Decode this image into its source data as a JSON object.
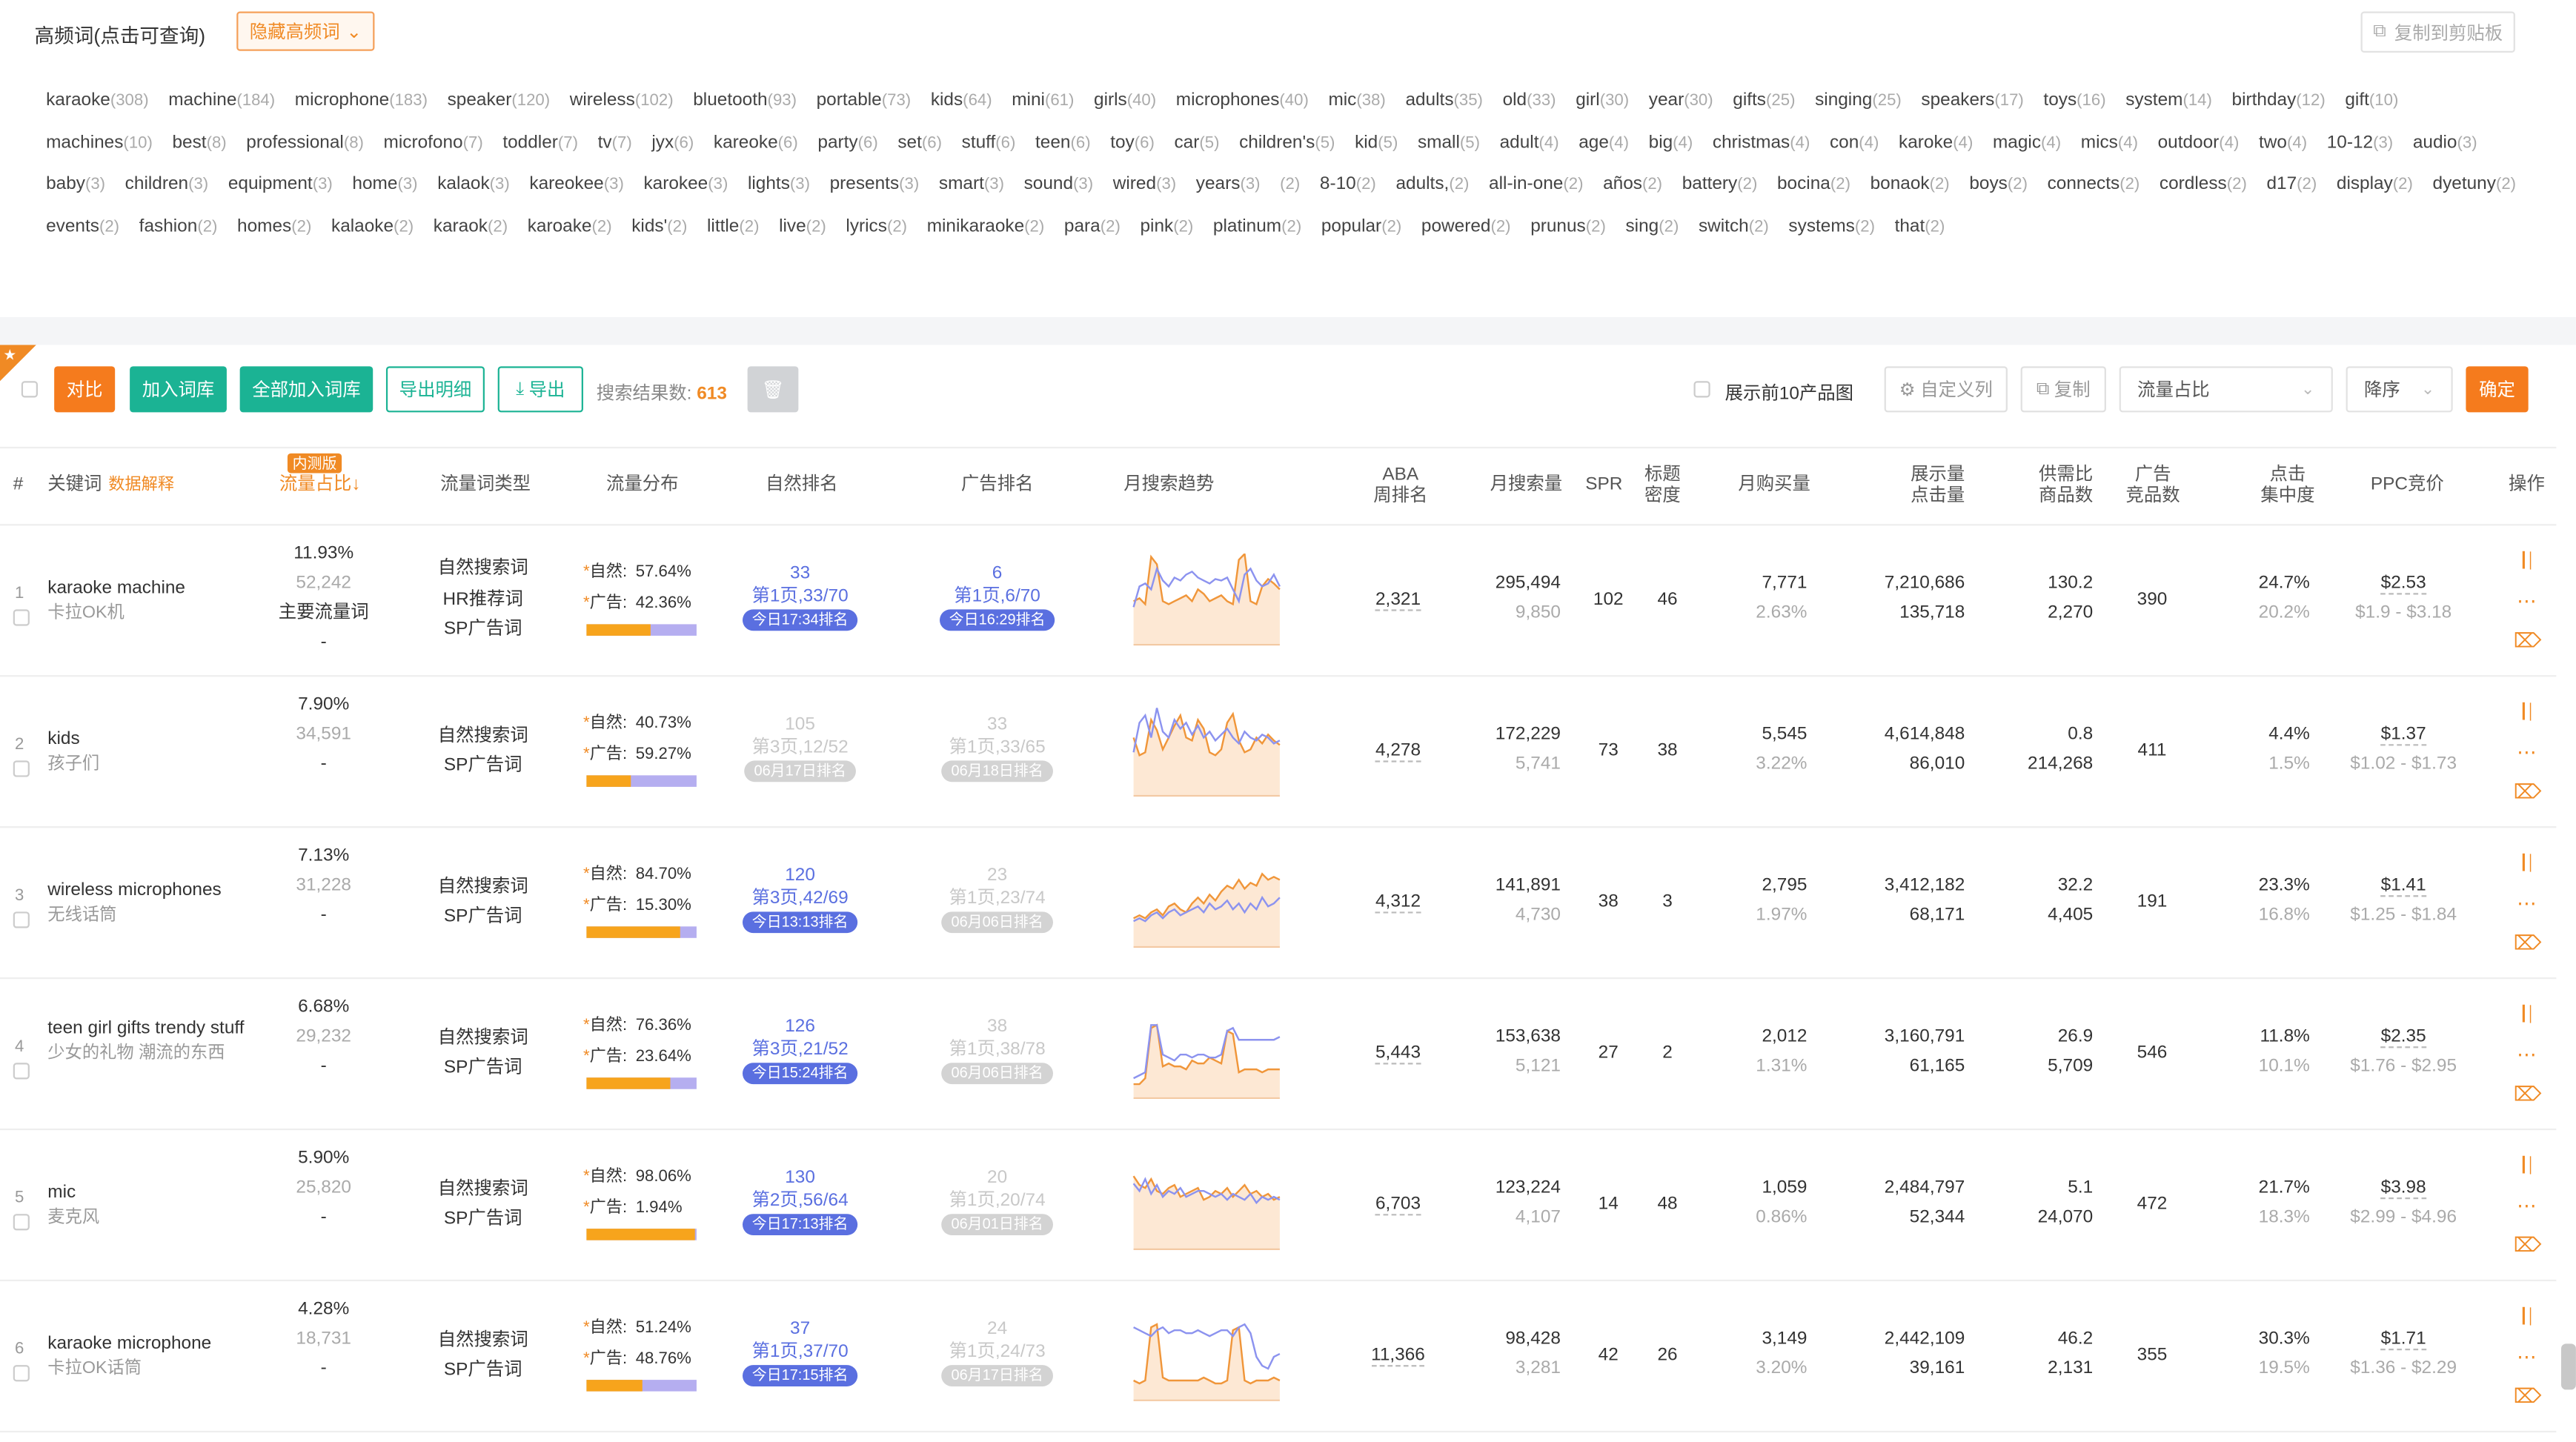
{
  "keywords_panel": {
    "title": "高频词(点击可查询)",
    "hide_button": "隐藏高频词",
    "copy_button": "复制到剪贴板",
    "tags": [
      [
        "karaoke",
        "(308)"
      ],
      [
        "machine",
        "(184)"
      ],
      [
        "microphone",
        "(183)"
      ],
      [
        "speaker",
        "(120)"
      ],
      [
        "wireless",
        "(102)"
      ],
      [
        "bluetooth",
        "(93)"
      ],
      [
        "portable",
        "(73)"
      ],
      [
        "kids",
        "(64)"
      ],
      [
        "mini",
        "(61)"
      ],
      [
        "girls",
        "(40)"
      ],
      [
        "microphones",
        "(40)"
      ],
      [
        "mic",
        "(38)"
      ],
      [
        "adults",
        "(35)"
      ],
      [
        "old",
        "(33)"
      ],
      [
        "girl",
        "(30)"
      ],
      [
        "year",
        "(30)"
      ],
      [
        "gifts",
        "(25)"
      ],
      [
        "singing",
        "(25)"
      ],
      [
        "speakers",
        "(17)"
      ],
      [
        "toys",
        "(16)"
      ],
      [
        "system",
        "(14)"
      ],
      [
        "birthday",
        "(12)"
      ],
      [
        "gift",
        "(10)"
      ],
      [
        "machines",
        "(10)"
      ],
      [
        "best",
        "(8)"
      ],
      [
        "professional",
        "(8)"
      ],
      [
        "microfono",
        "(7)"
      ],
      [
        "toddler",
        "(7)"
      ],
      [
        "tv",
        "(7)"
      ],
      [
        "jyx",
        "(6)"
      ],
      [
        "kareoke",
        "(6)"
      ],
      [
        "party",
        "(6)"
      ],
      [
        "set",
        "(6)"
      ],
      [
        "stuff",
        "(6)"
      ],
      [
        "teen",
        "(6)"
      ],
      [
        "toy",
        "(6)"
      ],
      [
        "car",
        "(5)"
      ],
      [
        "children's",
        "(5)"
      ],
      [
        "kid",
        "(5)"
      ],
      [
        "small",
        "(5)"
      ],
      [
        "adult",
        "(4)"
      ],
      [
        "age",
        "(4)"
      ],
      [
        "big",
        "(4)"
      ],
      [
        "christmas",
        "(4)"
      ],
      [
        "con",
        "(4)"
      ],
      [
        "karoke",
        "(4)"
      ],
      [
        "magic",
        "(4)"
      ],
      [
        "mics",
        "(4)"
      ],
      [
        "outdoor",
        "(4)"
      ],
      [
        "two",
        "(4)"
      ],
      [
        "10-12",
        "(3)"
      ],
      [
        "audio",
        "(3)"
      ],
      [
        "baby",
        "(3)"
      ],
      [
        "children",
        "(3)"
      ],
      [
        "equipment",
        "(3)"
      ],
      [
        "home",
        "(3)"
      ],
      [
        "kalaok",
        "(3)"
      ],
      [
        "kareokee",
        "(3)"
      ],
      [
        "karokee",
        "(3)"
      ],
      [
        "lights",
        "(3)"
      ],
      [
        "presents",
        "(3)"
      ],
      [
        "smart",
        "(3)"
      ],
      [
        "sound",
        "(3)"
      ],
      [
        "wired",
        "(3)"
      ],
      [
        "years",
        "(3)"
      ],
      [
        "",
        "(2)"
      ],
      [
        "8-10",
        "(2)"
      ],
      [
        "adults,",
        "(2)"
      ],
      [
        "all-in-one",
        "(2)"
      ],
      [
        "años",
        "(2)"
      ],
      [
        "battery",
        "(2)"
      ],
      [
        "bocina",
        "(2)"
      ],
      [
        "bonaok",
        "(2)"
      ],
      [
        "boys",
        "(2)"
      ],
      [
        "connects",
        "(2)"
      ],
      [
        "cordless",
        "(2)"
      ],
      [
        "d17",
        "(2)"
      ],
      [
        "display",
        "(2)"
      ],
      [
        "dyetuny",
        "(2)"
      ],
      [
        "events",
        "(2)"
      ],
      [
        "fashion",
        "(2)"
      ],
      [
        "homes",
        "(2)"
      ],
      [
        "kalaoke",
        "(2)"
      ],
      [
        "karaok",
        "(2)"
      ],
      [
        "karoake",
        "(2)"
      ],
      [
        "kids'",
        "(2)"
      ],
      [
        "little",
        "(2)"
      ],
      [
        "live",
        "(2)"
      ],
      [
        "lyrics",
        "(2)"
      ],
      [
        "minikaraoke",
        "(2)"
      ],
      [
        "para",
        "(2)"
      ],
      [
        "pink",
        "(2)"
      ],
      [
        "platinum",
        "(2)"
      ],
      [
        "popular",
        "(2)"
      ],
      [
        "powered",
        "(2)"
      ],
      [
        "prunus",
        "(2)"
      ],
      [
        "sing",
        "(2)"
      ],
      [
        "switch",
        "(2)"
      ],
      [
        "systems",
        "(2)"
      ],
      [
        "that",
        "(2)"
      ]
    ]
  },
  "toolbar": {
    "compare": "对比",
    "add_lib": "加入词库",
    "add_all_lib": "全部加入词库",
    "export_detail": "导出明细",
    "export": "导出",
    "result_label": "搜索结果数:",
    "result_count": "613",
    "show_top10": "展示前10产品图",
    "custom_cols": "自定义列",
    "copy": "复制",
    "sort_field": "流量占比",
    "sort_order": "降序",
    "confirm": "确定"
  },
  "columns": {
    "idx": "#",
    "keyword": "关键词",
    "data_explain": "数据解释",
    "badge": "内测版",
    "flow_share": "流量占比↓",
    "flow_type": "流量词类型",
    "flow_dist": "流量分布",
    "organic_rank": "自然排名",
    "ad_rank": "广告排名",
    "trend": "月搜索趋势",
    "aba": [
      "ABA",
      "周排名"
    ],
    "monthly_search": "月搜索量",
    "spr": "SPR",
    "title_density": [
      "标题",
      "密度"
    ],
    "monthly_buy": "月购买量",
    "impr": [
      "展示量",
      "点击量"
    ],
    "supply": [
      "供需比",
      "商品数"
    ],
    "ad_products": [
      "广告",
      "竞品数"
    ],
    "click_conc": [
      "点击",
      "集中度"
    ],
    "ppc": "PPC竞价",
    "ops": "操作"
  },
  "rows": [
    {
      "idx": "1",
      "kw": "karaoke machine",
      "cn": "卡拉OK机",
      "share": "11.93%",
      "share_n": "52,242",
      "main": "主要流量词",
      "dash": "-",
      "types": [
        "自然搜索词",
        "HR推荐词",
        "SP广告词"
      ],
      "org_label": "自然:",
      "org": "57.64%",
      "ad_label": "广告:",
      "ad": "42.36%",
      "org_frac": 0.5764,
      "rank1": "33",
      "rank1p": "第1页,33/70",
      "rank1t": "今日17:34排名",
      "rank1c": "blue",
      "rank2": "6",
      "rank2p": "第1页,6/70",
      "rank2t": "今日16:29排名",
      "rank2c": "blue",
      "aba": "2,321",
      "ms": "295,494",
      "ms2": "9,850",
      "spr": "102",
      "td": "46",
      "mb": "7,771",
      "mb2": "2.63%",
      "im": "7,210,686",
      "ck": "135,718",
      "sd": "130.2",
      "sd2": "2,270",
      "ap": "390",
      "cc": "24.7%",
      "cc2": "20.2%",
      "ppc": "$2.53",
      "ppc2": "$1.9 - $3.18"
    },
    {
      "idx": "2",
      "kw": "kids",
      "cn": "孩子们",
      "share": "7.90%",
      "share_n": "34,591",
      "main": "",
      "dash": "-",
      "types": [
        "自然搜索词",
        "SP广告词"
      ],
      "org_label": "自然:",
      "org": "40.73%",
      "ad_label": "广告:",
      "ad": "59.27%",
      "org_frac": 0.4073,
      "rank1": "105",
      "rank1p": "第3页,12/52",
      "rank1t": "06月17日排名",
      "rank1c": "gray",
      "rank2": "33",
      "rank2p": "第1页,33/65",
      "rank2t": "06月18日排名",
      "rank2c": "gray",
      "aba": "4,278",
      "ms": "172,229",
      "ms2": "5,741",
      "spr": "73",
      "td": "38",
      "mb": "5,545",
      "mb2": "3.22%",
      "im": "4,614,848",
      "ck": "86,010",
      "sd": "0.8",
      "sd2": "214,268",
      "ap": "411",
      "cc": "4.4%",
      "cc2": "1.5%",
      "ppc": "$1.37",
      "ppc2": "$1.02 - $1.73"
    },
    {
      "idx": "3",
      "kw": "wireless microphones",
      "cn": "无线话筒",
      "share": "7.13%",
      "share_n": "31,228",
      "main": "",
      "dash": "-",
      "types": [
        "自然搜索词",
        "SP广告词"
      ],
      "org_label": "自然:",
      "org": "84.70%",
      "ad_label": "广告:",
      "ad": "15.30%",
      "org_frac": 0.847,
      "rank1": "120",
      "rank1p": "第3页,42/69",
      "rank1t": "今日13:13排名",
      "rank1c": "blue",
      "rank2": "23",
      "rank2p": "第1页,23/74",
      "rank2t": "06月06日排名",
      "rank2c": "gray",
      "aba": "4,312",
      "ms": "141,891",
      "ms2": "4,730",
      "spr": "38",
      "td": "3",
      "mb": "2,795",
      "mb2": "1.97%",
      "im": "3,412,182",
      "ck": "68,171",
      "sd": "32.2",
      "sd2": "4,405",
      "ap": "191",
      "cc": "23.3%",
      "cc2": "16.8%",
      "ppc": "$1.41",
      "ppc2": "$1.25 - $1.84"
    },
    {
      "idx": "4",
      "kw": "teen girl gifts trendy stuff",
      "cn": "少女的礼物 潮流的东西",
      "share": "6.68%",
      "share_n": "29,232",
      "main": "",
      "dash": "-",
      "types": [
        "自然搜索词",
        "SP广告词"
      ],
      "org_label": "自然:",
      "org": "76.36%",
      "ad_label": "广告:",
      "ad": "23.64%",
      "org_frac": 0.7636,
      "rank1": "126",
      "rank1p": "第3页,21/52",
      "rank1t": "今日15:24排名",
      "rank1c": "blue",
      "rank2": "38",
      "rank2p": "第1页,38/78",
      "rank2t": "06月06日排名",
      "rank2c": "gray",
      "aba": "5,443",
      "ms": "153,638",
      "ms2": "5,121",
      "spr": "27",
      "td": "2",
      "mb": "2,012",
      "mb2": "1.31%",
      "im": "3,160,791",
      "ck": "61,165",
      "sd": "26.9",
      "sd2": "5,709",
      "ap": "546",
      "cc": "11.8%",
      "cc2": "10.1%",
      "ppc": "$2.35",
      "ppc2": "$1.76 - $2.95"
    },
    {
      "idx": "5",
      "kw": "mic",
      "cn": "麦克风",
      "share": "5.90%",
      "share_n": "25,820",
      "main": "",
      "dash": "-",
      "types": [
        "自然搜索词",
        "SP广告词"
      ],
      "org_label": "自然:",
      "org": "98.06%",
      "ad_label": "广告:",
      "ad": "1.94%",
      "org_frac": 0.9806,
      "rank1": "130",
      "rank1p": "第2页,56/64",
      "rank1t": "今日17:13排名",
      "rank1c": "blue",
      "rank2": "20",
      "rank2p": "第1页,20/74",
      "rank2t": "06月01日排名",
      "rank2c": "gray",
      "aba": "6,703",
      "ms": "123,224",
      "ms2": "4,107",
      "spr": "14",
      "td": "48",
      "mb": "1,059",
      "mb2": "0.86%",
      "im": "2,484,797",
      "ck": "52,344",
      "sd": "5.1",
      "sd2": "24,070",
      "ap": "472",
      "cc": "21.7%",
      "cc2": "18.3%",
      "ppc": "$3.98",
      "ppc2": "$2.99 - $4.96"
    },
    {
      "idx": "6",
      "kw": "karaoke microphone",
      "cn": "卡拉OK话筒",
      "share": "4.28%",
      "share_n": "18,731",
      "main": "",
      "dash": "-",
      "types": [
        "自然搜索词",
        "SP广告词"
      ],
      "org_label": "自然:",
      "org": "51.24%",
      "ad_label": "广告:",
      "ad": "48.76%",
      "org_frac": 0.5124,
      "rank1": "37",
      "rank1p": "第1页,37/70",
      "rank1t": "今日17:15排名",
      "rank1c": "blue",
      "rank2": "24",
      "rank2p": "第1页,24/73",
      "rank2t": "06月17日排名",
      "rank2c": "gray",
      "aba": "11,366",
      "ms": "98,428",
      "ms2": "3,281",
      "spr": "42",
      "td": "26",
      "mb": "3,149",
      "mb2": "3.20%",
      "im": "2,442,109",
      "ck": "39,161",
      "sd": "46.2",
      "sd2": "2,131",
      "ap": "355",
      "cc": "30.3%",
      "cc2": "19.5%",
      "ppc": "$1.71",
      "ppc2": "$1.36 - $2.29"
    }
  ],
  "trends": [
    {
      "orange": [
        30,
        32,
        28,
        60,
        55,
        30,
        28,
        30,
        32,
        34,
        30,
        38,
        35,
        30,
        32,
        34,
        30,
        28,
        58,
        62,
        30,
        28,
        40,
        45,
        42,
        38
      ],
      "blue": [
        26,
        40,
        42,
        38,
        52,
        44,
        40,
        46,
        44,
        48,
        50,
        46,
        44,
        42,
        45,
        44,
        46,
        38,
        30,
        48,
        52,
        44,
        40,
        42,
        48,
        40
      ]
    },
    {
      "orange": [
        40,
        28,
        30,
        52,
        45,
        32,
        40,
        48,
        55,
        40,
        38,
        52,
        46,
        30,
        28,
        32,
        50,
        56,
        38,
        30,
        32,
        40,
        36,
        42,
        38,
        35
      ],
      "blue": [
        30,
        50,
        55,
        40,
        60,
        44,
        40,
        52,
        46,
        50,
        42,
        48,
        40,
        44,
        38,
        42,
        46,
        40,
        36,
        44,
        40,
        38,
        42,
        40,
        36,
        38
      ]
    },
    {
      "orange": [
        20,
        22,
        20,
        24,
        26,
        22,
        28,
        30,
        26,
        24,
        30,
        34,
        30,
        36,
        32,
        38,
        42,
        40,
        46,
        40,
        44,
        42,
        50,
        46,
        48,
        46
      ],
      "blue": [
        18,
        20,
        18,
        22,
        24,
        20,
        24,
        26,
        22,
        24,
        26,
        28,
        24,
        30,
        26,
        28,
        32,
        26,
        30,
        24,
        30,
        26,
        34,
        28,
        30,
        34
      ]
    },
    {
      "orange": [
        10,
        10,
        14,
        48,
        50,
        22,
        24,
        22,
        22,
        20,
        26,
        24,
        24,
        28,
        26,
        24,
        46,
        44,
        18,
        20,
        20,
        20,
        18,
        20,
        20,
        20
      ],
      "blue": [
        14,
        16,
        18,
        50,
        50,
        30,
        28,
        26,
        30,
        30,
        28,
        30,
        30,
        28,
        28,
        30,
        46,
        48,
        40,
        40,
        40,
        40,
        40,
        40,
        40,
        42
      ]
    },
    {
      "orange": [
        50,
        44,
        42,
        48,
        40,
        38,
        42,
        44,
        36,
        38,
        40,
        42,
        34,
        36,
        40,
        38,
        42,
        36,
        40,
        44,
        38,
        40,
        36,
        38,
        34,
        36
      ],
      "blue": [
        45,
        40,
        48,
        38,
        44,
        36,
        40,
        38,
        42,
        36,
        38,
        40,
        40,
        38,
        36,
        38,
        34,
        38,
        36,
        34,
        38,
        32,
        36,
        34,
        36,
        34
      ]
    },
    {
      "orange": [
        14,
        12,
        14,
        50,
        52,
        16,
        14,
        14,
        14,
        14,
        14,
        14,
        16,
        14,
        12,
        12,
        14,
        48,
        50,
        14,
        12,
        14,
        14,
        14,
        16,
        14
      ],
      "blue": [
        50,
        48,
        46,
        44,
        48,
        50,
        46,
        48,
        48,
        46,
        46,
        48,
        46,
        44,
        46,
        48,
        48,
        44,
        50,
        52,
        46,
        30,
        24,
        22,
        30,
        32
      ]
    }
  ],
  "colors": {
    "accent": "#f57b1d",
    "green": "#1bb394",
    "blue": "#5a6fe0",
    "trend_orange": "#f0963a",
    "trend_blue": "#8c93ef"
  }
}
